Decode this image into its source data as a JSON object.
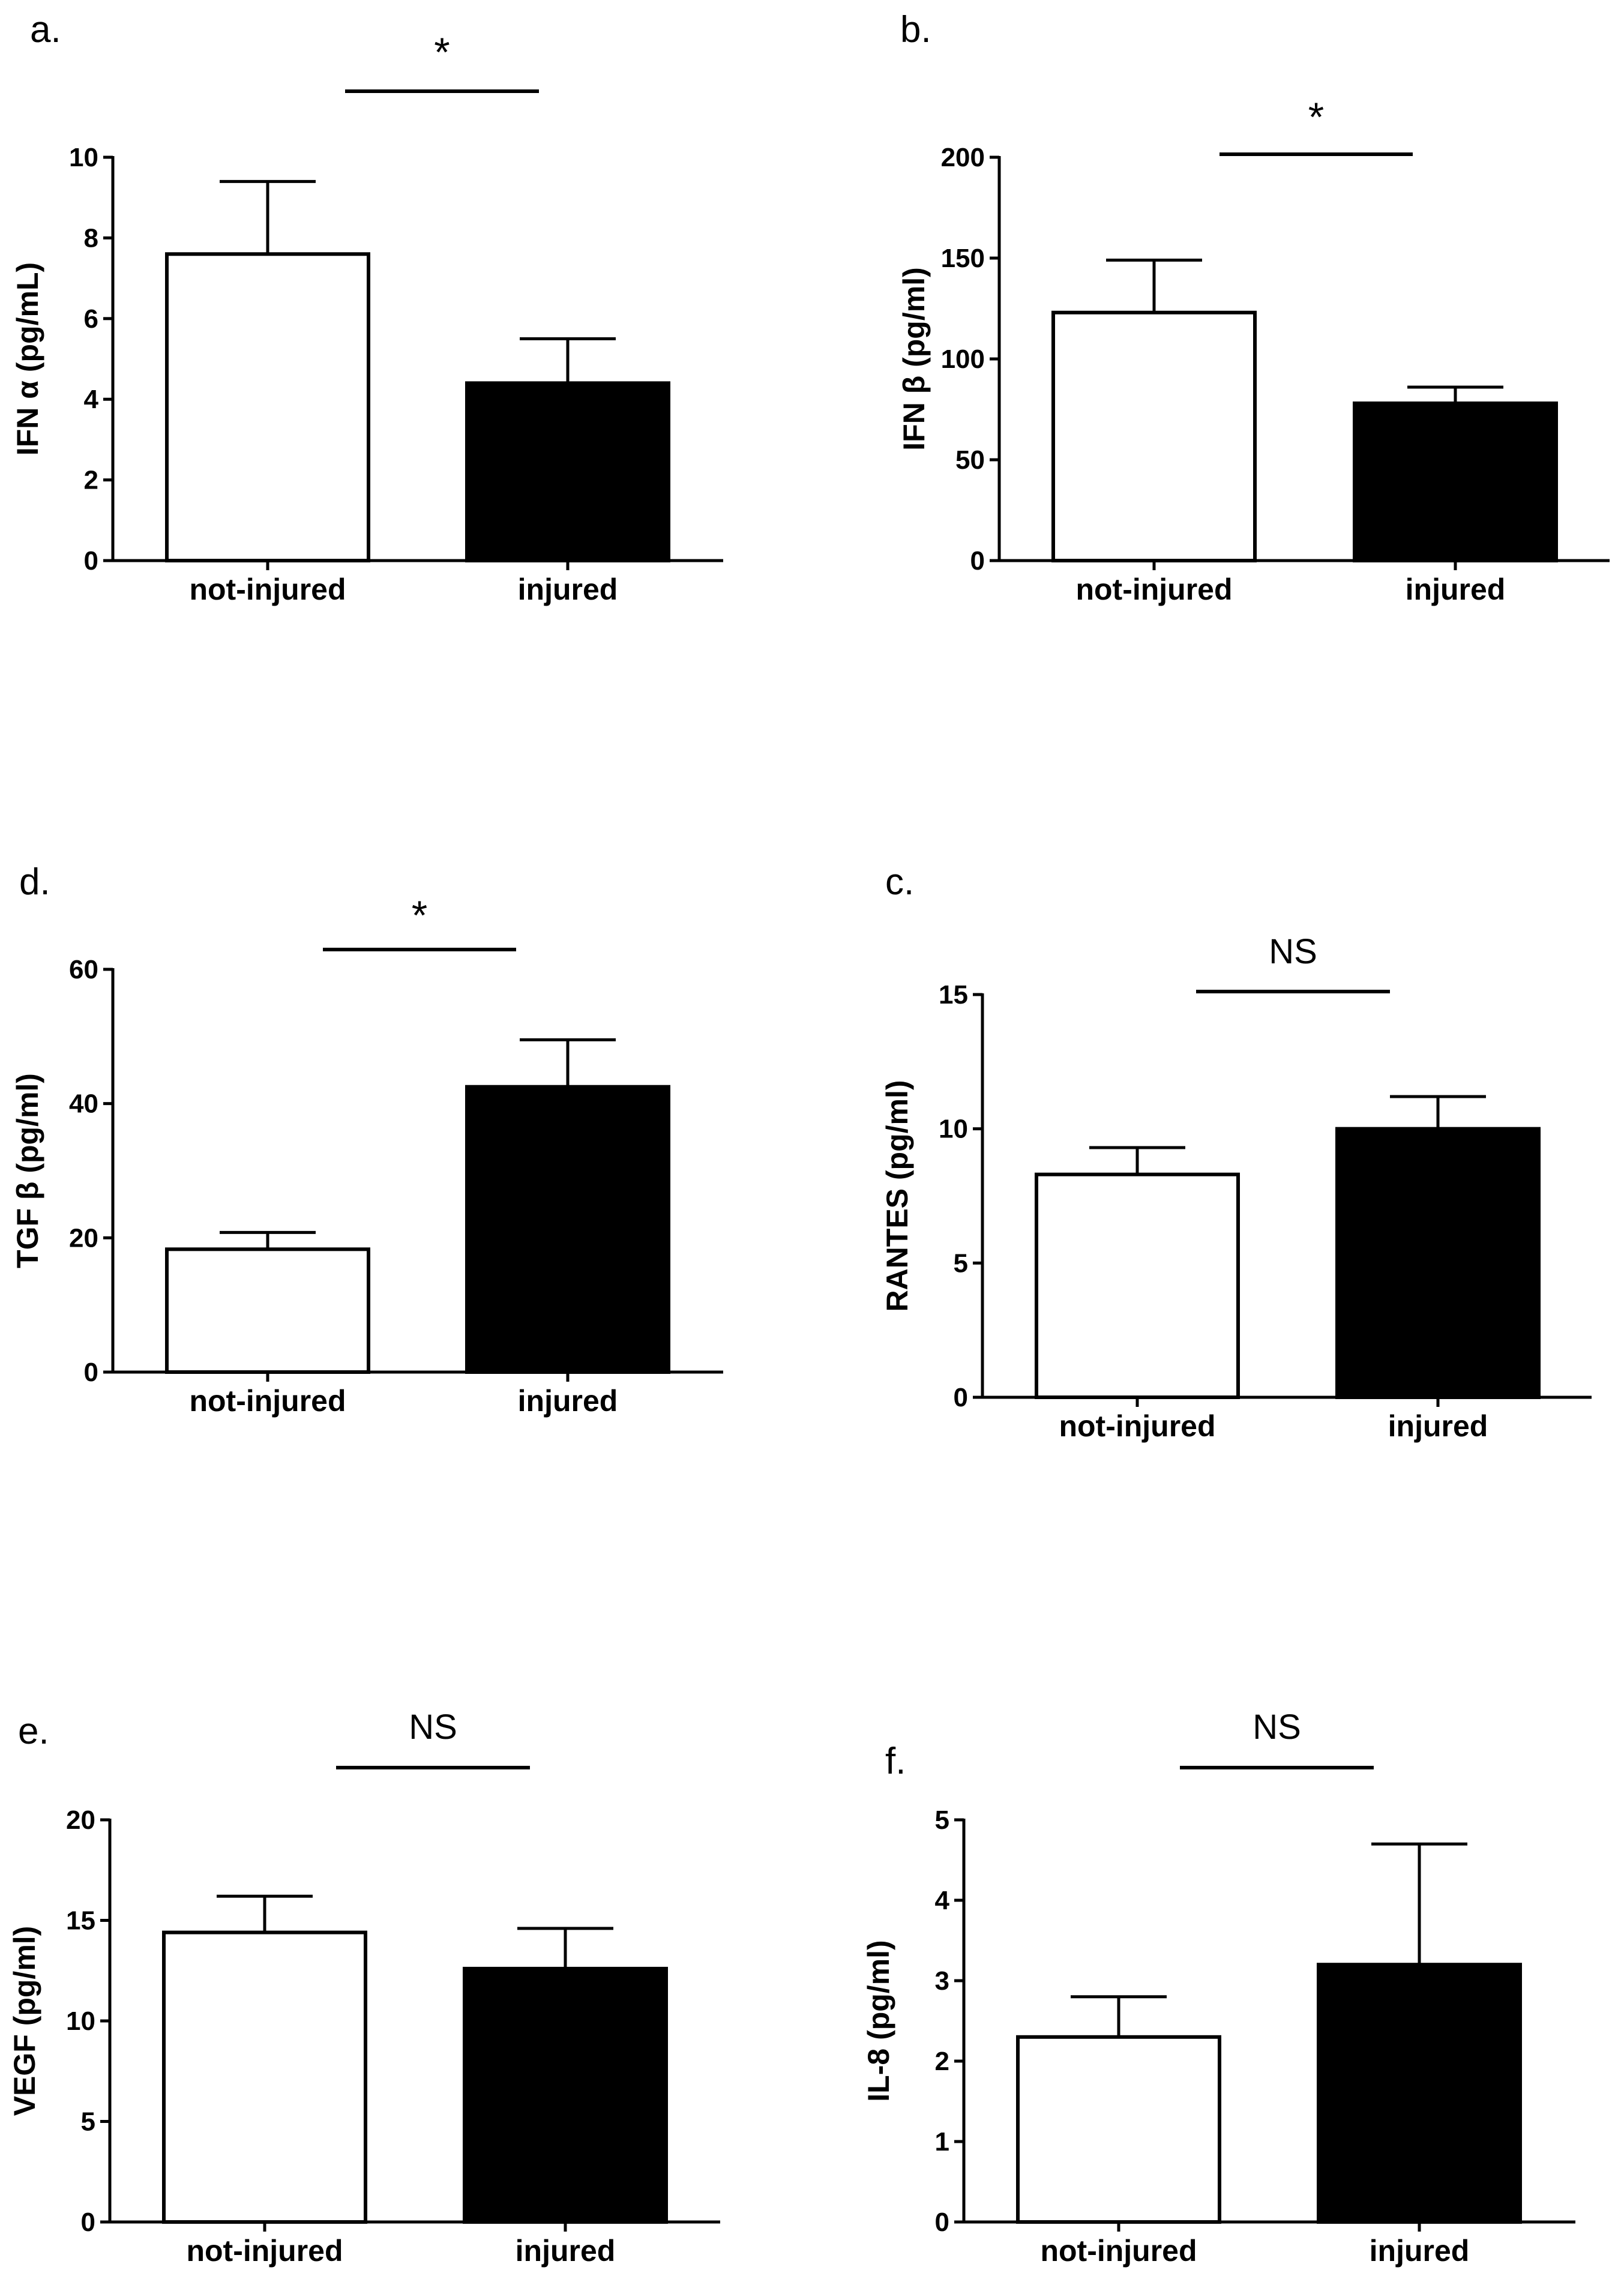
{
  "colors": {
    "not_injured": "#ffffff",
    "injured": "#000000",
    "axis": "#000000"
  },
  "chart_data": [
    {
      "panel": "a.",
      "type": "bar",
      "ylabel": "IFN α (pg/mL)",
      "categories": [
        "not-injured",
        "injured"
      ],
      "values": [
        7.6,
        4.4
      ],
      "error": [
        1.8,
        1.1
      ],
      "ylim": [
        0,
        10
      ],
      "yticks": [
        0,
        2,
        4,
        6,
        8,
        10
      ],
      "significance": "*"
    },
    {
      "panel": "b.",
      "type": "bar",
      "ylabel": "IFN β (pg/ml)",
      "categories": [
        "not-injured",
        "injured"
      ],
      "values": [
        123,
        78
      ],
      "error": [
        26,
        8
      ],
      "ylim": [
        0,
        200
      ],
      "yticks": [
        0,
        50,
        100,
        150,
        200
      ],
      "significance": "*"
    },
    {
      "panel": "d.",
      "type": "bar",
      "ylabel": "TGF β (pg/ml)",
      "categories": [
        "not-injured",
        "injured"
      ],
      "values": [
        18.3,
        42.5
      ],
      "error": [
        2.5,
        7.0
      ],
      "ylim": [
        0,
        60
      ],
      "yticks": [
        0,
        20,
        40,
        60
      ],
      "significance": "*"
    },
    {
      "panel": "c.",
      "type": "bar",
      "ylabel": "RANTES (pg/ml)",
      "categories": [
        "not-injured",
        "injured"
      ],
      "values": [
        8.3,
        10.0
      ],
      "error": [
        1.0,
        1.2
      ],
      "ylim": [
        0,
        15
      ],
      "yticks": [
        0,
        5,
        10,
        15
      ],
      "significance": "NS"
    },
    {
      "panel": "e.",
      "type": "bar",
      "ylabel": "VEGF (pg/ml)",
      "categories": [
        "not-injured",
        "injured"
      ],
      "values": [
        14.4,
        12.6
      ],
      "error": [
        1.8,
        2.0
      ],
      "ylim": [
        0,
        20
      ],
      "yticks": [
        0,
        5,
        10,
        15,
        20
      ],
      "significance": "NS"
    },
    {
      "panel": "f.",
      "type": "bar",
      "ylabel": "IL-8 (pg/ml)",
      "categories": [
        "not-injured",
        "injured"
      ],
      "values": [
        2.3,
        3.2
      ],
      "error": [
        0.5,
        1.5
      ],
      "ylim": [
        0,
        5
      ],
      "yticks": [
        0,
        1,
        2,
        3,
        4,
        5
      ],
      "significance": "NS"
    }
  ]
}
